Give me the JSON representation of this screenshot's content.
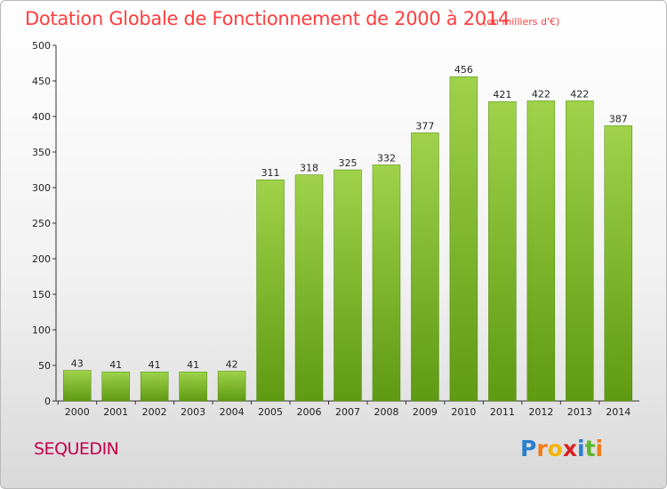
{
  "header": {
    "title": "Dotation Globale de Fonctionnement de 2000 à 2014",
    "unit": "(en milliers d'€)"
  },
  "footer": {
    "city": "SEQUEDIN",
    "logo_text": "Proxiti"
  },
  "colors": {
    "title": "#ff3e3e",
    "city": "#c4004a",
    "bar_top": "#9fd24a",
    "bar_bottom": "#5e9a12"
  },
  "chart_data": {
    "type": "bar",
    "categories": [
      "2000",
      "2001",
      "2002",
      "2003",
      "2004",
      "2005",
      "2006",
      "2007",
      "2008",
      "2009",
      "2010",
      "2011",
      "2012",
      "2013",
      "2014"
    ],
    "values": [
      43,
      41,
      41,
      41,
      42,
      311,
      318,
      325,
      332,
      377,
      456,
      421,
      422,
      422,
      387
    ],
    "title": "Dotation Globale de Fonctionnement de 2000 à 2014",
    "xlabel": "",
    "ylabel": "",
    "ylim": [
      0,
      500
    ],
    "yticks": [
      0,
      50,
      100,
      150,
      200,
      250,
      300,
      350,
      400,
      450,
      500
    ],
    "grid": false,
    "data_labels": true
  }
}
